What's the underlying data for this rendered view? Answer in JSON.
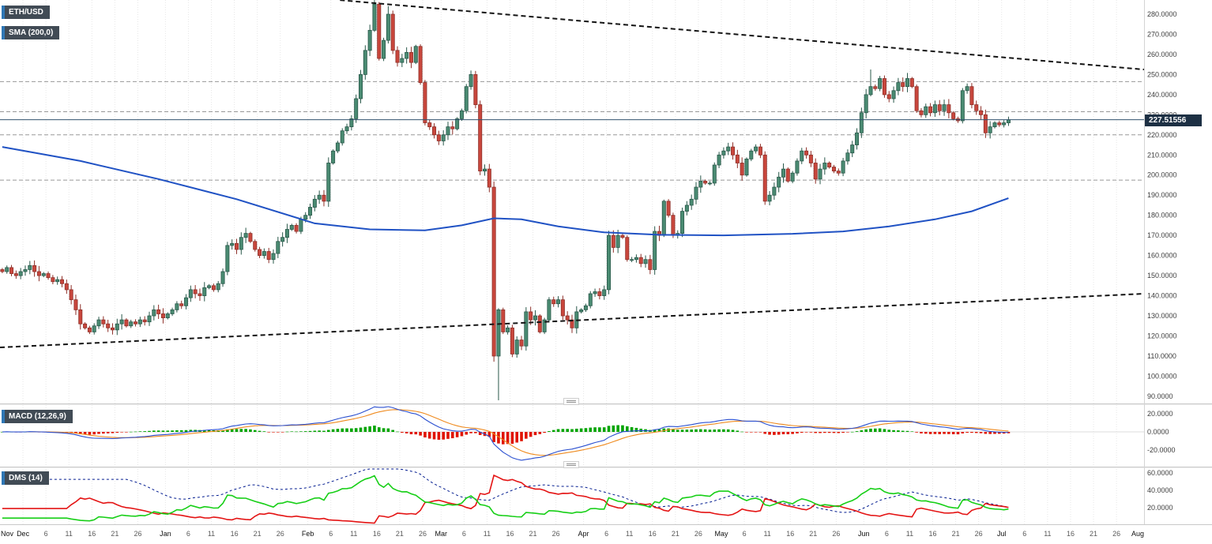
{
  "instrument": {
    "symbol_label": "ETH/USD",
    "sma_label": "SMA (200,0)",
    "macd_label": "MACD (12,26,9)",
    "dms_label": "DMS (14)"
  },
  "price_axis": {
    "last_price": 227.51556,
    "last_price_label": "227.51556",
    "labels": [
      {
        "text": "280.0000",
        "value": 280
      },
      {
        "text": "270.0000",
        "value": 270
      },
      {
        "text": "260.0000",
        "value": 260
      },
      {
        "text": "250.0000",
        "value": 250
      },
      {
        "text": "240.0000",
        "value": 240
      },
      {
        "text": "230.0000",
        "value": 230
      },
      {
        "text": "220.0000",
        "value": 220
      },
      {
        "text": "210.0000",
        "value": 210
      },
      {
        "text": "200.0000",
        "value": 200
      },
      {
        "text": "190.0000",
        "value": 190
      },
      {
        "text": "180.0000",
        "value": 180
      },
      {
        "text": "170.0000",
        "value": 170
      },
      {
        "text": "160.0000",
        "value": 160
      },
      {
        "text": "150.0000",
        "value": 150
      },
      {
        "text": "140.0000",
        "value": 140
      },
      {
        "text": "130.0000",
        "value": 130
      },
      {
        "text": "120.0000",
        "value": 120
      },
      {
        "text": "110.0000",
        "value": 110
      },
      {
        "text": "100.0000",
        "value": 100
      },
      {
        "text": "90.0000",
        "value": 90
      }
    ]
  },
  "macd_axis": {
    "labels": [
      {
        "text": "20.0000",
        "value": 20
      },
      {
        "text": "0.0000",
        "value": 0
      },
      {
        "text": "-20.0000",
        "value": -20
      }
    ]
  },
  "dms_axis": {
    "labels": [
      {
        "text": "60.0000",
        "value": 60
      },
      {
        "text": "40.0000",
        "value": 40
      },
      {
        "text": "20.0000",
        "value": 20
      }
    ]
  },
  "time_axis": {
    "ticks": [
      {
        "label": "Nov",
        "day": 0,
        "month": true
      },
      {
        "label": "Dec",
        "day": 5,
        "month": true
      },
      {
        "label": "6",
        "day": 10
      },
      {
        "label": "11",
        "day": 15
      },
      {
        "label": "16",
        "day": 20
      },
      {
        "label": "21",
        "day": 25
      },
      {
        "label": "26",
        "day": 30
      },
      {
        "label": "Jan",
        "day": 36,
        "month": true
      },
      {
        "label": "6",
        "day": 41
      },
      {
        "label": "11",
        "day": 46
      },
      {
        "label": "16",
        "day": 51
      },
      {
        "label": "21",
        "day": 56
      },
      {
        "label": "26",
        "day": 61
      },
      {
        "label": "Feb",
        "day": 67,
        "month": true
      },
      {
        "label": "6",
        "day": 72
      },
      {
        "label": "11",
        "day": 77
      },
      {
        "label": "16",
        "day": 82
      },
      {
        "label": "21",
        "day": 87
      },
      {
        "label": "26",
        "day": 92
      },
      {
        "label": "Mar",
        "day": 96,
        "month": true
      },
      {
        "label": "6",
        "day": 101
      },
      {
        "label": "11",
        "day": 106
      },
      {
        "label": "16",
        "day": 111
      },
      {
        "label": "21",
        "day": 116
      },
      {
        "label": "26",
        "day": 121
      },
      {
        "label": "Apr",
        "day": 127,
        "month": true
      },
      {
        "label": "6",
        "day": 132
      },
      {
        "label": "11",
        "day": 137
      },
      {
        "label": "16",
        "day": 142
      },
      {
        "label": "21",
        "day": 147
      },
      {
        "label": "26",
        "day": 152
      },
      {
        "label": "May",
        "day": 157,
        "month": true
      },
      {
        "label": "6",
        "day": 162
      },
      {
        "label": "11",
        "day": 167
      },
      {
        "label": "16",
        "day": 172
      },
      {
        "label": "21",
        "day": 177
      },
      {
        "label": "26",
        "day": 182
      },
      {
        "label": "Jun",
        "day": 188,
        "month": true
      },
      {
        "label": "6",
        "day": 193
      },
      {
        "label": "11",
        "day": 198
      },
      {
        "label": "16",
        "day": 203
      },
      {
        "label": "21",
        "day": 208
      },
      {
        "label": "26",
        "day": 213
      },
      {
        "label": "Jul",
        "day": 218,
        "month": true
      },
      {
        "label": "6",
        "day": 223
      },
      {
        "label": "11",
        "day": 228
      },
      {
        "label": "16",
        "day": 233
      },
      {
        "label": "21",
        "day": 238
      },
      {
        "label": "26",
        "day": 243
      },
      {
        "label": "Aug",
        "day": 249,
        "month": true
      }
    ]
  },
  "colors": {
    "bull": "#4a8b72",
    "bull_border": "#29584a",
    "bear": "#c9473d",
    "bear_border": "#8e2f28",
    "sma": "#2052c4",
    "macd_line": "#2a4fd0",
    "macd_signal": "#ef8a1e",
    "hist_pos": "#00a400",
    "hist_neg": "#e01400",
    "dms_plus": "#17cf17",
    "dms_minus": "#e41414",
    "dms_adx": "#001a8f",
    "trendline": "#141414",
    "sr_line": "#989898",
    "price_line": "#33536e",
    "tag_bg": "#1d3044"
  },
  "chart_data": {
    "type": "candlestick",
    "symbol": "ETH/USD",
    "timeframe": "daily",
    "days_total": 249,
    "price_range": [
      90,
      280
    ],
    "last_price": 227.51556,
    "closes": [
      152,
      154,
      151,
      150,
      152,
      153,
      155,
      152,
      150,
      151,
      149,
      147,
      148,
      146,
      143,
      138,
      133,
      126,
      124,
      122,
      125,
      128,
      126,
      124,
      123,
      126,
      128,
      125,
      127,
      126,
      128,
      127,
      130,
      133,
      131,
      129,
      131,
      133,
      136,
      135,
      139,
      143,
      141,
      140,
      144,
      145,
      143,
      146,
      152,
      165,
      166,
      163,
      169,
      171,
      167,
      163,
      160,
      162,
      158,
      161,
      167,
      169,
      173,
      175,
      172,
      178,
      180,
      184,
      188,
      190,
      187,
      206,
      212,
      216,
      222,
      224,
      228,
      238,
      250,
      262,
      272,
      285,
      258,
      267,
      280,
      262,
      256,
      258,
      261,
      256,
      264,
      246,
      226,
      224,
      220,
      217,
      220,
      224,
      223,
      228,
      232,
      244,
      250,
      235,
      202,
      203,
      194,
      110,
      133,
      122,
      124,
      111,
      118,
      115,
      132,
      128,
      130,
      122,
      128,
      138,
      136,
      138,
      130,
      128,
      124,
      132,
      133,
      135,
      141,
      142,
      140,
      143,
      170,
      164,
      170,
      169,
      158,
      158,
      159,
      156,
      158,
      153,
      172,
      170,
      187,
      180,
      170,
      171,
      182,
      185,
      188,
      194,
      197,
      196,
      196,
      205,
      210,
      212,
      214,
      210,
      206,
      200,
      208,
      212,
      214,
      210,
      187,
      190,
      194,
      199,
      203,
      197,
      201,
      207,
      212,
      210,
      206,
      198,
      203,
      206,
      204,
      202,
      201,
      207,
      211,
      215,
      221,
      231,
      240,
      244,
      243,
      248,
      240,
      238,
      242,
      246,
      244,
      248,
      244,
      232,
      230,
      234,
      231,
      235,
      232,
      235,
      231,
      228,
      227,
      242,
      244,
      235,
      232,
      230,
      221,
      224,
      226,
      225,
      226,
      227.51556
    ],
    "high_overrides": {
      "81": 287,
      "84": 284,
      "102": 252,
      "189": 252.5
    },
    "low_overrides": {
      "108": 88
    },
    "overlays": {
      "sma200_waypoints": [
        [
          0,
          214
        ],
        [
          17,
          207
        ],
        [
          34,
          198
        ],
        [
          51,
          188
        ],
        [
          68,
          176
        ],
        [
          80,
          173
        ],
        [
          92,
          172.5
        ],
        [
          100,
          175
        ],
        [
          107,
          178.5
        ],
        [
          113,
          178
        ],
        [
          121,
          174.5
        ],
        [
          131,
          171.5
        ],
        [
          143,
          170.3
        ],
        [
          157,
          170
        ],
        [
          172,
          170.8
        ],
        [
          183,
          172
        ],
        [
          193,
          174.5
        ],
        [
          203,
          178
        ],
        [
          211,
          182
        ],
        [
          219,
          188.5
        ]
      ],
      "support_resistance": [
        246.5,
        231.5,
        220,
        197.5
      ],
      "trendlines": [
        {
          "from": [
            74,
            287
          ],
          "to": [
            249,
            252.5
          ]
        },
        {
          "from": [
            0,
            114.3
          ],
          "to": [
            249,
            141
          ]
        }
      ]
    },
    "indicator_panels": [
      {
        "name": "MACD",
        "params": [
          12,
          26,
          9
        ],
        "axis_ticks": [
          20,
          0,
          -20
        ]
      },
      {
        "name": "DMS",
        "params": [
          14
        ],
        "axis_ticks": [
          60,
          40,
          20
        ]
      }
    ]
  }
}
